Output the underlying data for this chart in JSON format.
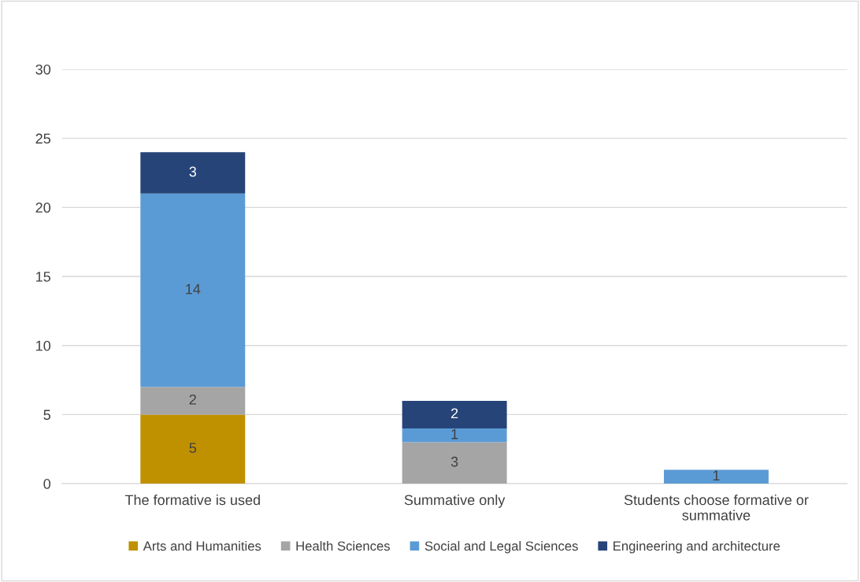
{
  "chart_data": {
    "type": "bar",
    "stacked": true,
    "categories": [
      "The formative is used",
      "Summative only",
      "Students choose formative or summative"
    ],
    "series": [
      {
        "name": "Arts and Humanities",
        "color": "#bf9000",
        "values": [
          5,
          null,
          null
        ]
      },
      {
        "name": "Health Sciences",
        "color": "#a5a5a5",
        "values": [
          2,
          3,
          null
        ]
      },
      {
        "name": "Social and Legal Sciences",
        "color": "#5b9bd5",
        "values": [
          14,
          1,
          1
        ]
      },
      {
        "name": "Engineering and architecture",
        "color": "#264478",
        "values": [
          3,
          2,
          null
        ]
      }
    ],
    "ylim": [
      0,
      30
    ],
    "yticks": [
      0,
      5,
      10,
      15,
      20,
      25,
      30
    ],
    "grid": "y",
    "legend": "bottom",
    "data_labels": true
  }
}
